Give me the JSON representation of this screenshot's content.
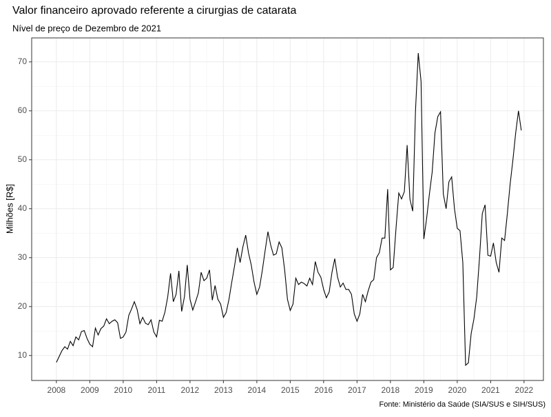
{
  "chart_data": {
    "type": "line",
    "title": "Valor financeiro aprovado referente a cirurgias de catarata",
    "subtitle": "Nível de preço de Dezembro de 2021",
    "y_label": "Milhões [R$]",
    "caption": "Fonte: Ministério da Saúde (SIA/SUS e SIH/SUS)",
    "grid": true,
    "xlim": [
      2007.26,
      2022.58
    ],
    "ylim": [
      4.9,
      74.9
    ],
    "xticks": [
      2008,
      2009,
      2010,
      2011,
      2012,
      2013,
      2014,
      2015,
      2016,
      2017,
      2018,
      2019,
      2020,
      2021,
      2022
    ],
    "yticks": [
      10,
      20,
      30,
      40,
      50,
      60,
      70
    ],
    "x": [
      2008,
      2008.083,
      2008.167,
      2008.25,
      2008.333,
      2008.417,
      2008.5,
      2008.583,
      2008.667,
      2008.75,
      2008.833,
      2008.917,
      2009,
      2009.083,
      2009.167,
      2009.25,
      2009.333,
      2009.417,
      2009.5,
      2009.583,
      2009.667,
      2009.75,
      2009.833,
      2009.917,
      2010,
      2010.083,
      2010.167,
      2010.25,
      2010.333,
      2010.417,
      2010.5,
      2010.583,
      2010.667,
      2010.75,
      2010.833,
      2010.917,
      2011,
      2011.083,
      2011.167,
      2011.25,
      2011.333,
      2011.417,
      2011.5,
      2011.583,
      2011.667,
      2011.75,
      2011.833,
      2011.917,
      2012,
      2012.083,
      2012.167,
      2012.25,
      2012.333,
      2012.417,
      2012.5,
      2012.583,
      2012.667,
      2012.75,
      2012.833,
      2012.917,
      2013,
      2013.083,
      2013.167,
      2013.25,
      2013.333,
      2013.417,
      2013.5,
      2013.583,
      2013.667,
      2013.75,
      2013.833,
      2013.917,
      2014,
      2014.083,
      2014.167,
      2014.25,
      2014.333,
      2014.417,
      2014.5,
      2014.583,
      2014.667,
      2014.75,
      2014.833,
      2014.917,
      2015,
      2015.083,
      2015.167,
      2015.25,
      2015.333,
      2015.417,
      2015.5,
      2015.583,
      2015.667,
      2015.75,
      2015.833,
      2015.917,
      2016,
      2016.083,
      2016.167,
      2016.25,
      2016.333,
      2016.417,
      2016.5,
      2016.583,
      2016.667,
      2016.75,
      2016.833,
      2016.917,
      2017,
      2017.083,
      2017.167,
      2017.25,
      2017.333,
      2017.417,
      2017.5,
      2017.583,
      2017.667,
      2017.75,
      2017.833,
      2017.917,
      2018,
      2018.083,
      2018.167,
      2018.25,
      2018.333,
      2018.417,
      2018.5,
      2018.583,
      2018.667,
      2018.75,
      2018.833,
      2018.917,
      2019,
      2019.083,
      2019.167,
      2019.25,
      2019.333,
      2019.417,
      2019.5,
      2019.583,
      2019.667,
      2019.75,
      2019.833,
      2019.917,
      2020,
      2020.083,
      2020.167,
      2020.25,
      2020.333,
      2020.417,
      2020.5,
      2020.583,
      2020.667,
      2020.75,
      2020.833,
      2020.917,
      2021,
      2021.083,
      2021.167,
      2021.25,
      2021.333,
      2021.417,
      2021.5,
      2021.583,
      2021.667,
      2021.75,
      2021.833,
      2021.917
    ],
    "series": [
      {
        "color": "#000000",
        "values": [
          8.6,
          9.8,
          11.0,
          11.8,
          11.3,
          12.9,
          12.0,
          13.8,
          13.2,
          14.9,
          15.1,
          13.5,
          12.3,
          11.8,
          15.6,
          14.2,
          15.5,
          16.0,
          17.5,
          16.5,
          17.0,
          17.3,
          16.7,
          13.5,
          13.8,
          14.8,
          18.2,
          19.5,
          21.0,
          19.4,
          16.5,
          17.8,
          16.6,
          16.3,
          17.3,
          14.8,
          13.8,
          17.2,
          17.0,
          18.9,
          22.0,
          26.8,
          21.0,
          22.5,
          27.3,
          19.0,
          22.0,
          28.5,
          21.5,
          19.3,
          21.0,
          22.8,
          27.0,
          25.3,
          25.8,
          27.5,
          21.3,
          24.3,
          21.5,
          20.5,
          17.8,
          18.8,
          21.5,
          25.0,
          28.3,
          32.0,
          29.0,
          32.2,
          34.6,
          31.0,
          28.5,
          25.0,
          22.5,
          24.0,
          27.5,
          31.5,
          35.3,
          32.5,
          30.5,
          30.8,
          33.2,
          32.0,
          27.5,
          21.5,
          19.2,
          20.5,
          25.8,
          24.5,
          25.0,
          24.7,
          24.2,
          25.8,
          24.5,
          29.2,
          27.0,
          26.0,
          23.5,
          21.8,
          23.0,
          27.0,
          29.8,
          26.0,
          24.0,
          24.8,
          23.5,
          23.5,
          22.5,
          18.5,
          17.0,
          18.5,
          22.5,
          21.0,
          23.2,
          25.0,
          25.5,
          30.0,
          31.0,
          34.0,
          34.0,
          44.0,
          27.5,
          28.0,
          36.0,
          43.2,
          42.0,
          43.5,
          53.0,
          42.0,
          39.5,
          60.0,
          71.8,
          66.0,
          33.8,
          38.0,
          43.0,
          47.5,
          55.5,
          58.8,
          59.8,
          43.0,
          40.0,
          45.5,
          46.5,
          40.0,
          36.0,
          35.5,
          29.0,
          8.0,
          8.5,
          14.5,
          17.5,
          22.0,
          30.0,
          39.0,
          40.8,
          30.5,
          30.3,
          33.0,
          29.0,
          27.0,
          34.0,
          33.5,
          39.0,
          45.0,
          50.0,
          55.5,
          60.0,
          56.0
        ]
      }
    ]
  }
}
